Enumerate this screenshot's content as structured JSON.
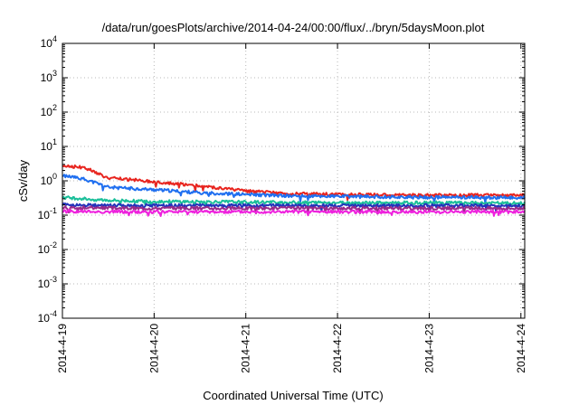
{
  "chart_data": {
    "type": "line",
    "title": "/data/run/goesPlots/archive/2014-04-24/00:00/flux/../bryn/5daysMoon.plot",
    "xlabel": "Coordinated Universal Time (UTC)",
    "ylabel": "cSv/day",
    "yscale": "log",
    "ylim": [
      0.0001,
      10000
    ],
    "xlim": [
      "2014-4-19",
      "2014-4-24 01:00"
    ],
    "grid": true,
    "x_ticks": [
      "2014-4-19",
      "2014-4-20",
      "2014-4-21",
      "2014-4-22",
      "2014-4-23",
      "2014-4-24"
    ],
    "y_ticks": [
      {
        "value": 0.0001,
        "base": "10",
        "exp": "-4"
      },
      {
        "value": 0.001,
        "base": "10",
        "exp": "-3"
      },
      {
        "value": 0.01,
        "base": "10",
        "exp": "-2"
      },
      {
        "value": 0.1,
        "base": "10",
        "exp": "-1"
      },
      {
        "value": 1,
        "base": "10",
        "exp": "0"
      },
      {
        "value": 10,
        "base": "10",
        "exp": "1"
      },
      {
        "value": 100,
        "base": "10",
        "exp": "2"
      },
      {
        "value": 1000,
        "base": "10",
        "exp": "3"
      },
      {
        "value": 10000,
        "base": "10",
        "exp": "4"
      }
    ],
    "series": [
      {
        "color": "#e8251f",
        "x": [
          "2014-4-19",
          "2014-4-19 06:00",
          "2014-4-19 12:00",
          "2014-4-20",
          "2014-4-20 12:00",
          "2014-4-21",
          "2014-4-21 12:00",
          "2014-4-22",
          "2014-4-22 12:00",
          "2014-4-23",
          "2014-4-23 12:00",
          "2014-4-24",
          "2014-4-24 01:00"
        ],
        "values": [
          2.8,
          2.4,
          1.2,
          0.95,
          0.7,
          0.5,
          0.42,
          0.4,
          0.39,
          0.38,
          0.38,
          0.38,
          0.38
        ]
      },
      {
        "color": "#1f6ff0",
        "x": [
          "2014-4-19",
          "2014-4-19 06:00",
          "2014-4-19 12:00",
          "2014-4-20",
          "2014-4-20 12:00",
          "2014-4-21",
          "2014-4-21 12:00",
          "2014-4-22",
          "2014-4-22 12:00",
          "2014-4-23",
          "2014-4-23 12:00",
          "2014-4-24",
          "2014-4-24 01:00"
        ],
        "values": [
          1.4,
          1.1,
          0.65,
          0.55,
          0.45,
          0.4,
          0.36,
          0.35,
          0.34,
          0.33,
          0.33,
          0.32,
          0.32
        ]
      },
      {
        "color": "#1bbf9a",
        "x": [
          "2014-4-19",
          "2014-4-19 12:00",
          "2014-4-20",
          "2014-4-21",
          "2014-4-22",
          "2014-4-23",
          "2014-4-24",
          "2014-4-24 01:00"
        ],
        "values": [
          0.33,
          0.27,
          0.25,
          0.24,
          0.23,
          0.23,
          0.22,
          0.22
        ]
      },
      {
        "color": "#2233bb",
        "x": [
          "2014-4-19",
          "2014-4-19 12:00",
          "2014-4-20",
          "2014-4-21",
          "2014-4-22",
          "2014-4-23",
          "2014-4-24",
          "2014-4-24 01:00"
        ],
        "values": [
          0.2,
          0.19,
          0.19,
          0.19,
          0.19,
          0.19,
          0.19,
          0.19
        ]
      },
      {
        "color": "#9a2a8a",
        "x": [
          "2014-4-19",
          "2014-4-19 12:00",
          "2014-4-20",
          "2014-4-21",
          "2014-4-22",
          "2014-4-23",
          "2014-4-24",
          "2014-4-24 01:00"
        ],
        "values": [
          0.17,
          0.16,
          0.16,
          0.16,
          0.16,
          0.16,
          0.16,
          0.16
        ]
      },
      {
        "color": "#ee22dd",
        "x": [
          "2014-4-19",
          "2014-4-19 12:00",
          "2014-4-20",
          "2014-4-21",
          "2014-4-22",
          "2014-4-23",
          "2014-4-24",
          "2014-4-24 01:00"
        ],
        "values": [
          0.13,
          0.125,
          0.125,
          0.125,
          0.125,
          0.125,
          0.125,
          0.125
        ]
      }
    ]
  }
}
